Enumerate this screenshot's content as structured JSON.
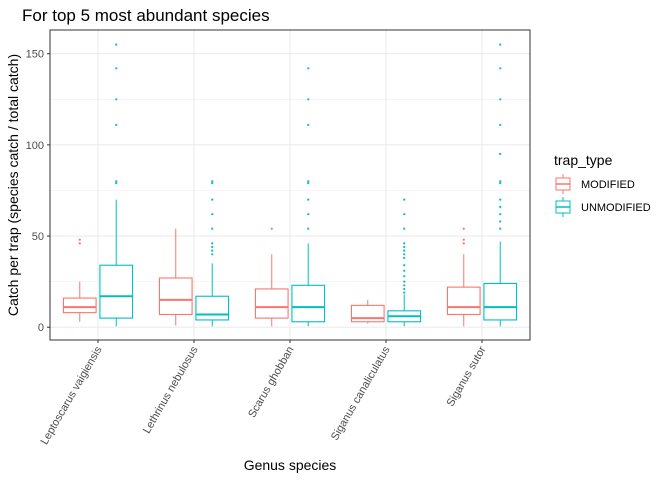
{
  "chart_data": {
    "type": "boxplot",
    "title": "For top 5 most abundant species",
    "xlabel": "Genus species",
    "ylabel": "Catch per trap (species catch / total catch)",
    "ylim": [
      -7,
      163
    ],
    "yticks": [
      0,
      50,
      100,
      150
    ],
    "grid": true,
    "legend_position": "right",
    "legend_title": "trap_type",
    "categories": [
      "Leptoscarus vaigiensis",
      "Lethrinus nebulosus",
      "Scarus ghobban",
      "Siganus canaliculatus",
      "Siganus sutor"
    ],
    "series": [
      {
        "name": "MODIFIED",
        "color": "#F8766D",
        "boxes": [
          {
            "q1": 8,
            "median": 11,
            "q3": 16,
            "whisker_low": 3,
            "whisker_high": 25,
            "outliers": [
              46,
              48
            ]
          },
          {
            "q1": 7,
            "median": 15,
            "q3": 27,
            "whisker_low": 1,
            "whisker_high": 54,
            "outliers": []
          },
          {
            "q1": 5,
            "median": 11,
            "q3": 21,
            "whisker_low": 0.5,
            "whisker_high": 40,
            "outliers": [
              54
            ]
          },
          {
            "q1": 3,
            "median": 5,
            "q3": 12,
            "whisker_low": 2,
            "whisker_high": 15,
            "outliers": []
          },
          {
            "q1": 7,
            "median": 11,
            "q3": 22,
            "whisker_low": 0.5,
            "whisker_high": 40,
            "outliers": [
              46,
              48,
              54
            ]
          }
        ]
      },
      {
        "name": "UNMODIFIED",
        "color": "#00BFC4",
        "boxes": [
          {
            "q1": 5,
            "median": 17,
            "q3": 34,
            "whisker_low": 0.5,
            "whisker_high": 70,
            "outliers": [
              79,
              80,
              111,
              125,
              142,
              155
            ]
          },
          {
            "q1": 4,
            "median": 7,
            "q3": 17,
            "whisker_low": 0.5,
            "whisker_high": 35,
            "outliers": [
              40,
              42,
              44,
              46,
              54,
              62,
              70,
              79,
              80
            ]
          },
          {
            "q1": 3,
            "median": 11,
            "q3": 23,
            "whisker_low": 0.5,
            "whisker_high": 46,
            "outliers": [
              54,
              62,
              70,
              79,
              80,
              111,
              125,
              142
            ]
          },
          {
            "q1": 3,
            "median": 6,
            "q3": 9,
            "whisker_low": 0.5,
            "whisker_high": 18,
            "outliers": [
              19,
              21,
              23,
              25,
              28,
              31,
              34,
              38,
              40,
              42,
              44,
              46,
              54,
              62,
              70
            ]
          },
          {
            "q1": 4,
            "median": 11,
            "q3": 24,
            "whisker_low": 0.5,
            "whisker_high": 47,
            "outliers": [
              54,
              58,
              62,
              66,
              70,
              79,
              80,
              95,
              111,
              125,
              142,
              155
            ]
          }
        ]
      }
    ]
  }
}
